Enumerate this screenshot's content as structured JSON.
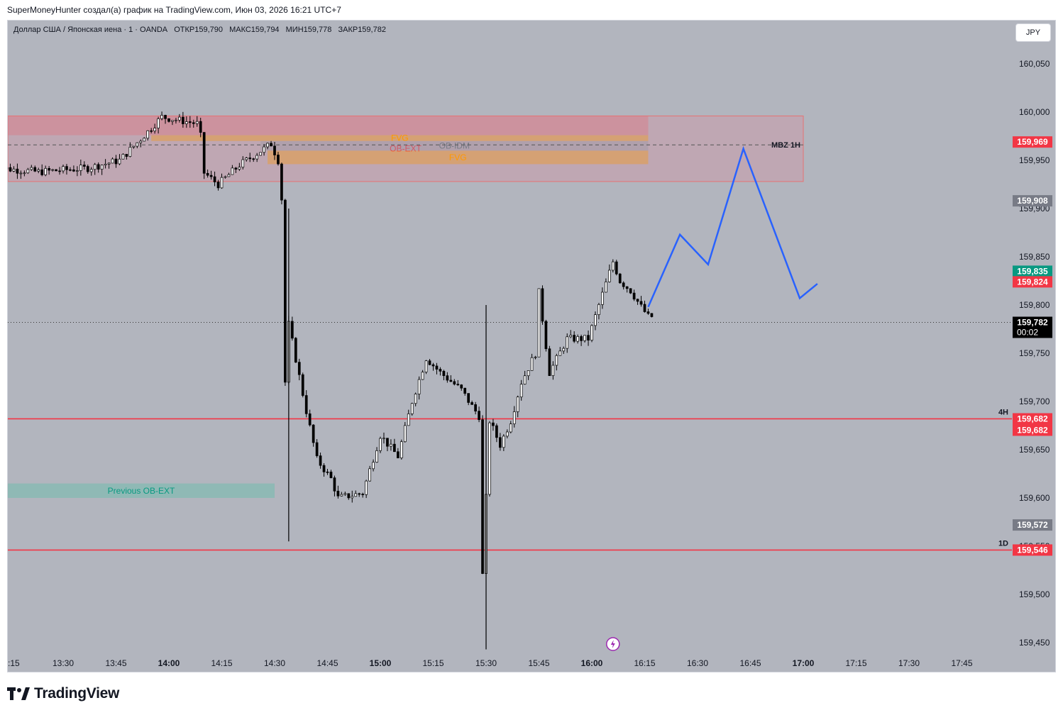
{
  "header": {
    "attribution": "SuperMoneyHunter создал(а) график на TradingView.com, Июн 03, 2026 16:21 UTC+7"
  },
  "symbol": {
    "name": "Доллар США / Японская иена · 1 · OANDA",
    "open": "ОТКР159,790",
    "high": "МАКС159,794",
    "low": "МИН159,778",
    "close": "ЗАКР159,782"
  },
  "currency_button": "JPY",
  "footer": {
    "logo_text": "TradingView"
  },
  "colors": {
    "background": "#b2b5be",
    "candle": "#000000",
    "red_line": "#f23645",
    "projection": "#2962ff",
    "teal_zone": "#8ab7ad",
    "zone_label_red": "#f23645",
    "zone_label_orange": "#ff9800",
    "zone_label_teal": "#089981"
  },
  "chart_data": {
    "type": "candlestick",
    "title": "Доллар США / Японская иена · 1 · OANDA",
    "y_ticks": [
      "160,050",
      "160,000",
      "159,950",
      "159,900",
      "159,850",
      "159,800",
      "159,750",
      "159,700",
      "159,650",
      "159,600",
      "159,550",
      "159,500",
      "159,450"
    ],
    "y_tick_values": [
      160.05,
      160.0,
      159.95,
      159.9,
      159.85,
      159.8,
      159.75,
      159.7,
      159.65,
      159.6,
      159.55,
      159.5,
      159.45
    ],
    "x_ticks": [
      {
        "label": ":15",
        "bold": false
      },
      {
        "label": "13:30",
        "bold": false
      },
      {
        "label": "13:45",
        "bold": false
      },
      {
        "label": "14:00",
        "bold": true
      },
      {
        "label": "14:15",
        "bold": false
      },
      {
        "label": "14:30",
        "bold": false
      },
      {
        "label": "14:45",
        "bold": false
      },
      {
        "label": "15:00",
        "bold": true
      },
      {
        "label": "15:15",
        "bold": false
      },
      {
        "label": "15:30",
        "bold": false
      },
      {
        "label": "15:45",
        "bold": false
      },
      {
        "label": "16:00",
        "bold": true
      },
      {
        "label": "16:15",
        "bold": false
      },
      {
        "label": "16:30",
        "bold": false
      },
      {
        "label": "16:45",
        "bold": false
      },
      {
        "label": "17:00",
        "bold": true
      },
      {
        "label": "17:15",
        "bold": false
      },
      {
        "label": "17:30",
        "bold": false
      },
      {
        "label": "17:45",
        "bold": false
      }
    ],
    "x_tick_minutes": [
      795,
      810,
      825,
      840,
      855,
      870,
      885,
      900,
      915,
      930,
      945,
      960,
      975,
      990,
      1005,
      1020,
      1035,
      1050,
      1065
    ],
    "y_range": [
      159.44,
      160.07
    ],
    "price_badges": [
      {
        "label": "159,969",
        "value": 159.969,
        "color": "#f23645"
      },
      {
        "label": "159,908",
        "value": 159.908,
        "color": "#787b86"
      },
      {
        "label": "159,835",
        "value": 159.835,
        "color": "#089981"
      },
      {
        "label": "159,824",
        "value": 159.824,
        "color": "#f23645"
      },
      {
        "label": "159,782",
        "value": 159.782,
        "color": "#000000",
        "sub": "00:02"
      },
      {
        "label": "159,682",
        "value": 159.682,
        "color": "#f23645"
      },
      {
        "label": "159,682",
        "value": 159.682,
        "color": "#f23645",
        "offset": 1
      },
      {
        "label": "159,572",
        "value": 159.572,
        "color": "#787b86"
      },
      {
        "label": "159,546",
        "value": 159.546,
        "color": "#f23645"
      }
    ],
    "horizontal_lines": [
      {
        "value": 159.682,
        "label": "4H",
        "color": "#f23645"
      },
      {
        "value": 159.546,
        "label": "1D",
        "color": "#f23645"
      },
      {
        "value": 159.966,
        "label": "MBZ 1H",
        "color": "#555555",
        "dashed": true
      },
      {
        "value": 159.782,
        "label": "",
        "color": "#333333",
        "dotted": true
      }
    ],
    "zones": [
      {
        "label": "OB-EXT",
        "from_min": 790,
        "to_min": 1020,
        "top": 159.996,
        "bottom": 159.928,
        "fill": "rgba(214,140,160,0.35)",
        "border": "#e57373",
        "text_color": "#f23645"
      },
      {
        "label": "",
        "from_min": 790,
        "to_min": 976,
        "top": 159.996,
        "bottom": 159.976,
        "fill": "rgba(230,110,120,0.35)",
        "border": "none",
        "text_color": "#f23645"
      },
      {
        "label": "FVG",
        "from_min": 835,
        "to_min": 976,
        "top": 159.976,
        "bottom": 159.97,
        "fill": "rgba(255,152,0,0.35)",
        "border": "none",
        "text_color": "#ff9800"
      },
      {
        "label": "OB-IDM",
        "from_min": 866,
        "to_min": 976,
        "top": 159.97,
        "bottom": 159.96,
        "fill": "rgba(150,150,160,0.35)",
        "border": "none",
        "text_color": "#787b86"
      },
      {
        "label": "FVG",
        "from_min": 868,
        "to_min": 976,
        "top": 159.96,
        "bottom": 159.946,
        "fill": "rgba(255,152,0,0.35)",
        "border": "none",
        "text_color": "#ff9800"
      },
      {
        "label": "Previous OB-EXT",
        "from_min": 790,
        "to_min": 870,
        "top": 159.615,
        "bottom": 159.6,
        "fill": "rgba(100,190,170,0.45)",
        "border": "none",
        "text_color": "#089981"
      }
    ],
    "projection": [
      [
        976,
        159.798
      ],
      [
        985,
        159.873
      ],
      [
        993,
        159.842
      ],
      [
        1003,
        159.962
      ],
      [
        1019,
        159.807
      ],
      [
        1024,
        159.822
      ]
    ],
    "candle_path": [
      [
        790,
        159.943
      ],
      [
        804,
        159.938
      ],
      [
        818,
        159.942
      ],
      [
        827,
        159.95
      ],
      [
        833,
        159.972
      ],
      [
        839,
        159.995
      ],
      [
        849,
        159.988
      ],
      [
        850,
        159.975
      ],
      [
        851,
        159.937
      ],
      [
        855,
        159.925
      ],
      [
        861,
        159.945
      ],
      [
        868,
        159.962
      ],
      [
        870,
        159.967
      ],
      [
        872,
        159.95
      ],
      [
        873,
        159.91
      ],
      [
        874,
        159.72
      ],
      [
        875,
        159.78
      ],
      [
        880,
        159.69
      ],
      [
        883,
        159.64
      ],
      [
        887,
        159.62
      ],
      [
        889,
        159.6
      ],
      [
        896,
        159.605
      ],
      [
        901,
        159.665
      ],
      [
        906,
        159.643
      ],
      [
        910,
        159.7
      ],
      [
        914,
        159.745
      ],
      [
        918,
        159.73
      ],
      [
        924,
        159.712
      ],
      [
        927,
        159.695
      ],
      [
        929,
        159.685
      ],
      [
        930,
        159.52
      ],
      [
        932,
        159.68
      ],
      [
        935,
        159.655
      ],
      [
        938,
        159.68
      ],
      [
        941,
        159.72
      ],
      [
        945,
        159.75
      ],
      [
        946,
        159.813
      ],
      [
        949,
        159.73
      ],
      [
        954,
        159.765
      ],
      [
        960,
        159.765
      ],
      [
        963,
        159.8
      ],
      [
        967,
        159.845
      ],
      [
        969,
        159.825
      ],
      [
        972,
        159.815
      ],
      [
        975,
        159.798
      ],
      [
        977,
        159.788
      ]
    ]
  }
}
